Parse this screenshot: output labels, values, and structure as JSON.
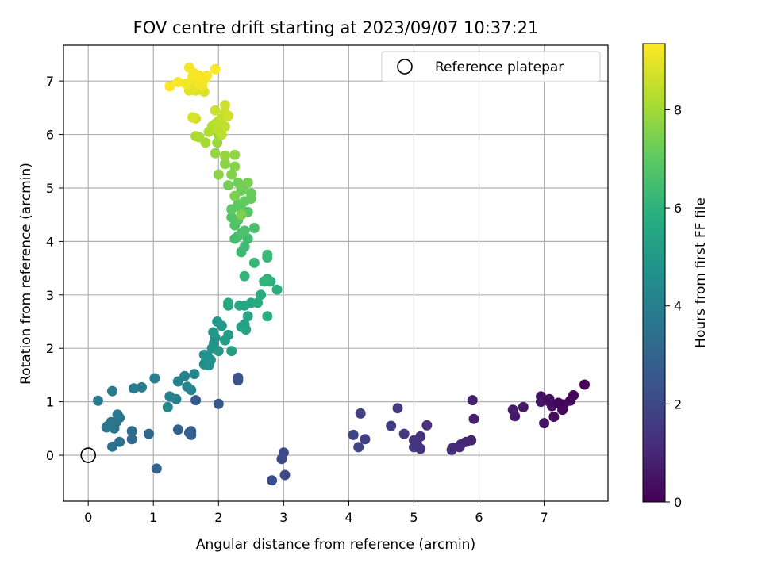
{
  "chart_data": {
    "type": "scatter",
    "title": "FOV centre drift starting at 2023/09/07 10:37:21",
    "xlabel": "Angular distance from reference (arcmin)",
    "ylabel": "Rotation from reference (arcmin)",
    "xlim": [
      -0.38,
      7.98
    ],
    "ylim": [
      -0.86,
      7.67
    ],
    "xticks": [
      0,
      1,
      2,
      3,
      4,
      5,
      6,
      7
    ],
    "yticks": [
      0,
      1,
      2,
      3,
      4,
      5,
      6,
      7
    ],
    "grid": true,
    "legend": {
      "placement": "top-right",
      "entries": [
        "Reference platepar"
      ]
    },
    "reference_point": [
      0,
      0
    ],
    "colorbar": {
      "label": "Hours from first FF file",
      "min": 0,
      "max": 9.35,
      "ticks": [
        0,
        2,
        4,
        6,
        8
      ],
      "colormap": "viridis"
    },
    "points": [
      [
        7.62,
        1.32,
        0.05
      ],
      [
        7.45,
        1.12,
        0.1
      ],
      [
        7.4,
        1.02,
        0.15
      ],
      [
        7.3,
        0.95,
        0.2
      ],
      [
        7.28,
        0.85,
        0.25
      ],
      [
        7.15,
        0.72,
        0.3
      ],
      [
        7.12,
        0.92,
        0.35
      ],
      [
        7.08,
        1.05,
        0.4
      ],
      [
        6.95,
        1.1,
        0.45
      ],
      [
        7.0,
        0.6,
        0.5
      ],
      [
        6.95,
        1.0,
        0.55
      ],
      [
        6.68,
        0.9,
        0.6
      ],
      [
        6.55,
        0.73,
        0.65
      ],
      [
        6.52,
        0.85,
        0.7
      ],
      [
        7.22,
        0.98,
        0.12
      ],
      [
        7.05,
        1.02,
        0.38
      ],
      [
        5.92,
        0.68,
        0.8
      ],
      [
        5.9,
        1.03,
        0.85
      ],
      [
        5.88,
        0.28,
        0.9
      ],
      [
        5.8,
        0.25,
        0.95
      ],
      [
        5.72,
        0.2,
        1.0
      ],
      [
        5.7,
        0.15,
        1.05
      ],
      [
        5.6,
        0.14,
        1.1
      ],
      [
        5.58,
        0.1,
        1.15
      ],
      [
        5.2,
        0.56,
        1.25
      ],
      [
        5.1,
        0.35,
        1.3
      ],
      [
        5.1,
        0.12,
        1.35
      ],
      [
        5.05,
        0.2,
        1.4
      ],
      [
        5.0,
        0.15,
        1.45
      ],
      [
        5.0,
        0.28,
        1.5
      ],
      [
        4.85,
        0.4,
        1.55
      ],
      [
        4.75,
        0.88,
        1.6
      ],
      [
        4.65,
        0.55,
        1.65
      ],
      [
        4.25,
        0.3,
        1.75
      ],
      [
        4.18,
        0.78,
        1.8
      ],
      [
        4.15,
        0.15,
        1.85
      ],
      [
        4.07,
        0.38,
        1.9
      ],
      [
        3.02,
        -0.37,
        2.05
      ],
      [
        3.0,
        0.05,
        2.1
      ],
      [
        2.97,
        -0.07,
        2.15
      ],
      [
        2.82,
        -0.47,
        2.2
      ],
      [
        2.3,
        1.4,
        2.4
      ],
      [
        2.3,
        1.45,
        2.45
      ],
      [
        2.0,
        0.96,
        2.55
      ],
      [
        1.65,
        1.03,
        2.6
      ],
      [
        1.58,
        0.38,
        2.7
      ],
      [
        1.58,
        0.45,
        2.75
      ],
      [
        1.55,
        0.42,
        2.8
      ],
      [
        1.38,
        0.48,
        2.9
      ],
      [
        1.05,
        -0.25,
        3.0
      ],
      [
        0.93,
        0.4,
        3.1
      ],
      [
        0.67,
        0.3,
        3.2
      ],
      [
        0.67,
        0.45,
        3.25
      ],
      [
        0.48,
        0.25,
        3.35
      ],
      [
        0.37,
        0.16,
        3.4
      ],
      [
        0.48,
        0.7,
        3.45
      ],
      [
        0.43,
        0.62,
        3.5
      ],
      [
        0.4,
        0.5,
        3.55
      ],
      [
        0.38,
        0.58,
        3.6
      ],
      [
        0.35,
        0.62,
        3.62
      ],
      [
        0.3,
        0.55,
        3.65
      ],
      [
        0.28,
        0.52,
        3.68
      ],
      [
        0.45,
        0.76,
        3.72
      ],
      [
        0.37,
        1.2,
        3.76
      ],
      [
        0.15,
        1.02,
        3.8
      ],
      [
        0.82,
        1.27,
        3.88
      ],
      [
        0.7,
        1.25,
        3.9
      ],
      [
        1.02,
        1.44,
        3.95
      ],
      [
        1.25,
        1.1,
        4.0
      ],
      [
        1.35,
        1.05,
        4.05
      ],
      [
        1.38,
        1.38,
        4.1
      ],
      [
        1.48,
        1.48,
        4.15
      ],
      [
        1.52,
        1.28,
        4.2
      ],
      [
        1.58,
        1.22,
        4.25
      ],
      [
        1.63,
        1.52,
        4.3
      ],
      [
        1.22,
        0.9,
        4.35
      ],
      [
        1.78,
        1.7,
        4.6
      ],
      [
        1.8,
        1.75,
        4.65
      ],
      [
        1.85,
        1.68,
        4.7
      ],
      [
        1.83,
        1.85,
        4.75
      ],
      [
        1.9,
        2.0,
        4.8
      ],
      [
        1.95,
        2.2,
        4.85
      ],
      [
        1.92,
        2.3,
        4.9
      ],
      [
        1.98,
        2.5,
        4.95
      ],
      [
        2.05,
        2.42,
        5.0
      ],
      [
        2.0,
        1.95,
        5.05
      ],
      [
        2.1,
        2.15,
        5.1
      ],
      [
        2.15,
        2.25,
        5.15
      ],
      [
        2.2,
        1.95,
        5.2
      ],
      [
        1.78,
        1.88,
        4.7
      ],
      [
        1.88,
        1.78,
        4.72
      ],
      [
        1.93,
        2.1,
        4.82
      ],
      [
        2.35,
        2.4,
        5.3
      ],
      [
        2.4,
        2.45,
        5.35
      ],
      [
        2.42,
        2.35,
        5.4
      ],
      [
        2.45,
        2.6,
        5.45
      ],
      [
        2.5,
        2.85,
        5.5
      ],
      [
        2.4,
        2.8,
        5.55
      ],
      [
        2.32,
        2.8,
        5.6
      ],
      [
        2.15,
        2.85,
        5.65
      ],
      [
        2.15,
        2.8,
        5.7
      ],
      [
        2.6,
        2.85,
        5.75
      ],
      [
        2.65,
        3.0,
        5.8
      ],
      [
        2.75,
        2.6,
        5.85
      ],
      [
        2.9,
        3.1,
        5.9
      ],
      [
        2.8,
        3.25,
        5.95
      ],
      [
        2.7,
        3.25,
        6.0
      ],
      [
        2.75,
        3.3,
        6.05
      ],
      [
        2.4,
        3.35,
        6.1
      ],
      [
        2.55,
        3.6,
        6.15
      ],
      [
        2.75,
        3.7,
        6.2
      ],
      [
        2.75,
        3.75,
        6.25
      ],
      [
        2.35,
        3.8,
        6.3
      ],
      [
        2.4,
        3.9,
        6.35
      ],
      [
        2.45,
        4.05,
        6.4
      ],
      [
        2.25,
        4.05,
        6.45
      ],
      [
        2.3,
        4.1,
        6.5
      ],
      [
        2.55,
        4.25,
        6.55
      ],
      [
        2.35,
        4.15,
        6.6
      ],
      [
        2.4,
        4.2,
        6.65
      ],
      [
        2.25,
        4.3,
        6.7
      ],
      [
        2.2,
        4.45,
        6.75
      ],
      [
        2.3,
        4.4,
        6.8
      ],
      [
        2.45,
        4.55,
        6.85
      ],
      [
        2.35,
        4.6,
        6.9
      ],
      [
        2.2,
        4.6,
        6.95
      ],
      [
        2.3,
        4.7,
        7.0
      ],
      [
        2.4,
        4.75,
        7.05
      ],
      [
        2.5,
        4.8,
        7.1
      ],
      [
        2.5,
        4.9,
        7.15
      ],
      [
        2.35,
        4.95,
        7.2
      ],
      [
        2.4,
        5.05,
        7.25
      ],
      [
        2.3,
        5.1,
        7.3
      ],
      [
        2.15,
        5.05,
        7.35
      ],
      [
        2.45,
        5.1,
        7.4
      ],
      [
        2.25,
        4.85,
        7.45
      ],
      [
        2.35,
        4.5,
        7.5
      ],
      [
        2.2,
        5.25,
        7.55
      ],
      [
        2.25,
        5.4,
        7.6
      ],
      [
        2.1,
        5.45,
        7.65
      ],
      [
        2.0,
        5.25,
        7.7
      ],
      [
        2.25,
        5.62,
        7.75
      ],
      [
        2.1,
        5.6,
        7.8
      ],
      [
        1.95,
        5.65,
        7.85
      ],
      [
        1.98,
        5.85,
        7.9
      ],
      [
        2.0,
        6.0,
        7.95
      ],
      [
        1.8,
        5.85,
        8.05
      ],
      [
        1.7,
        5.95,
        8.1
      ],
      [
        1.65,
        5.97,
        8.15
      ],
      [
        1.85,
        6.05,
        8.2
      ],
      [
        1.9,
        6.15,
        8.25
      ],
      [
        1.95,
        6.2,
        8.3
      ],
      [
        2.0,
        6.25,
        8.35
      ],
      [
        2.05,
        6.0,
        8.4
      ],
      [
        2.1,
        6.15,
        8.45
      ],
      [
        2.05,
        6.3,
        8.5
      ],
      [
        2.1,
        6.4,
        8.55
      ],
      [
        1.95,
        6.45,
        8.6
      ],
      [
        2.1,
        6.55,
        8.65
      ],
      [
        2.15,
        6.35,
        8.7
      ],
      [
        1.65,
        6.3,
        8.75
      ],
      [
        1.6,
        6.32,
        8.8
      ],
      [
        1.98,
        6.1,
        8.4
      ],
      [
        1.78,
        6.8,
        8.85
      ],
      [
        1.65,
        6.82,
        8.9
      ],
      [
        1.55,
        6.82,
        8.95
      ],
      [
        1.6,
        6.85,
        9.0
      ],
      [
        1.65,
        7.0,
        9.05
      ],
      [
        1.75,
        7.0,
        9.1
      ],
      [
        1.8,
        7.05,
        9.12
      ],
      [
        1.75,
        6.92,
        9.15
      ],
      [
        1.7,
        7.1,
        9.18
      ],
      [
        1.6,
        7.08,
        9.2
      ],
      [
        1.55,
        7.25,
        9.22
      ],
      [
        1.62,
        7.15,
        9.25
      ],
      [
        1.82,
        7.1,
        9.27
      ],
      [
        1.95,
        7.22,
        9.3
      ],
      [
        1.38,
        6.98,
        9.32
      ],
      [
        1.25,
        6.9,
        9.34
      ],
      [
        1.5,
        6.95,
        9.2
      ],
      [
        1.68,
        6.95,
        9.15
      ],
      [
        1.72,
        7.05,
        9.28
      ]
    ]
  }
}
